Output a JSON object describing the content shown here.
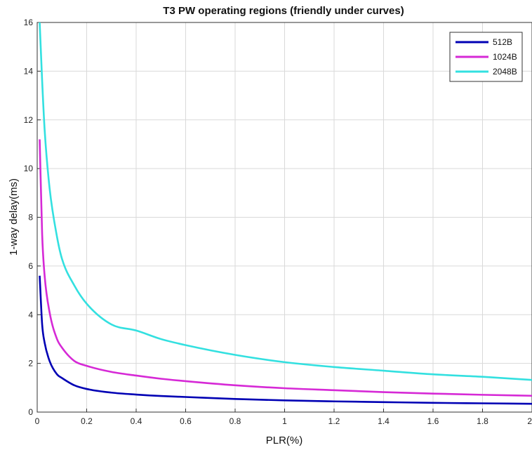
{
  "chart_data": {
    "type": "line",
    "title": "T3 PW operating regions (friendly under curves)",
    "xlabel": "PLR(%)",
    "ylabel": "1-way delay(ms)",
    "xlim": [
      0,
      2
    ],
    "ylim": [
      0,
      16
    ],
    "xticks": [
      "0",
      "0.2",
      "0.4",
      "0.6",
      "0.8",
      "1",
      "1.2",
      "1.4",
      "1.6",
      "1.8",
      "2"
    ],
    "yticks": [
      "0",
      "2",
      "4",
      "6",
      "8",
      "10",
      "12",
      "14",
      "16"
    ],
    "grid": true,
    "legend_position": "top-right",
    "x": [
      0.01,
      0.02,
      0.03,
      0.05,
      0.08,
      0.1,
      0.15,
      0.2,
      0.3,
      0.4,
      0.5,
      0.6,
      0.8,
      1.0,
      1.2,
      1.4,
      1.6,
      1.8,
      2.0
    ],
    "series": [
      {
        "name": "512B",
        "color": "#0000b4",
        "values": [
          5.6,
          3.6,
          2.85,
          2.1,
          1.55,
          1.4,
          1.1,
          0.95,
          0.8,
          0.72,
          0.66,
          0.62,
          0.54,
          0.48,
          0.44,
          0.41,
          0.38,
          0.36,
          0.34
        ]
      },
      {
        "name": "1024B",
        "color": "#d629d6",
        "values": [
          11.2,
          7.3,
          5.6,
          4.1,
          3.0,
          2.65,
          2.1,
          1.9,
          1.65,
          1.5,
          1.37,
          1.27,
          1.1,
          0.98,
          0.9,
          0.82,
          0.76,
          0.71,
          0.67
        ]
      },
      {
        "name": "2048B",
        "color": "#33e0e0",
        "values": [
          16.0,
          13.6,
          11.6,
          9.2,
          7.2,
          6.3,
          5.2,
          4.45,
          3.6,
          3.35,
          3.0,
          2.75,
          2.35,
          2.05,
          1.85,
          1.7,
          1.55,
          1.45,
          1.32
        ]
      }
    ]
  }
}
